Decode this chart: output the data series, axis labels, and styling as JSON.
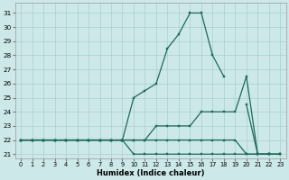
{
  "xlabel": "Humidex (Indice chaleur)",
  "bg_color": "#cce8e8",
  "grid_color": "#aacfcf",
  "line_color": "#1a6b5a",
  "xlim": [
    -0.5,
    23.5
  ],
  "ylim": [
    20.7,
    31.7
  ],
  "xticks": [
    0,
    1,
    2,
    3,
    4,
    5,
    6,
    7,
    8,
    9,
    10,
    11,
    12,
    13,
    14,
    15,
    16,
    17,
    18,
    19,
    20,
    21,
    22,
    23
  ],
  "yticks": [
    21,
    22,
    23,
    24,
    25,
    26,
    27,
    28,
    29,
    30,
    31
  ],
  "line1": [
    22,
    22,
    22,
    22,
    22,
    22,
    22,
    22,
    22,
    22,
    21,
    21,
    21,
    21,
    21,
    21,
    21,
    21,
    21,
    21,
    21,
    21,
    21,
    21
  ],
  "line2": [
    22,
    22,
    22,
    22,
    22,
    22,
    22,
    22,
    22,
    22,
    22,
    22,
    22,
    22,
    22,
    22,
    22,
    22,
    22,
    22,
    21,
    21,
    21,
    21
  ],
  "line3": [
    22,
    22,
    22,
    22,
    22,
    22,
    22,
    22,
    22,
    22,
    22,
    22,
    23,
    23,
    23,
    23,
    24,
    24,
    24,
    24,
    26.5,
    21,
    21,
    21
  ],
  "line4": [
    22,
    22,
    22,
    22,
    22,
    22,
    22,
    22,
    22,
    22,
    25,
    25.5,
    26,
    28.5,
    29.5,
    31,
    31,
    28,
    26.5,
    null,
    24.5,
    21,
    21,
    null
  ]
}
